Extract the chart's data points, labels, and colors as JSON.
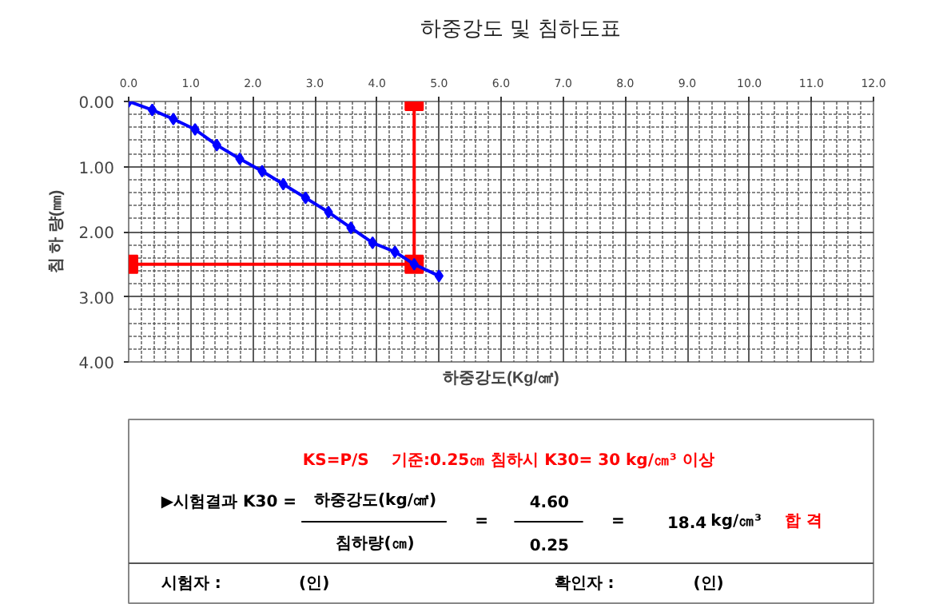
{
  "chart_data": {
    "type": "line",
    "title": "하중강도 및 침하도표",
    "xlabel": "하중강도(Kg/㎠)",
    "ylabel": "침 하 량(㎜)",
    "xlim": [
      0,
      12
    ],
    "xticks": [
      {
        "value": 0,
        "label": "0.0"
      },
      {
        "value": 1,
        "label": "1.0"
      },
      {
        "value": 2,
        "label": "2.0"
      },
      {
        "value": 3,
        "label": "3.0"
      },
      {
        "value": 4,
        "label": "4.0"
      },
      {
        "value": 5,
        "label": "5.0"
      },
      {
        "value": 6,
        "label": "6.0"
      },
      {
        "value": 7,
        "label": "7.0"
      },
      {
        "value": 8,
        "label": "8.0"
      },
      {
        "value": 9,
        "label": "9.0"
      },
      {
        "value": 10,
        "label": "10.0"
      },
      {
        "value": 11,
        "label": "11.0"
      },
      {
        "value": 12,
        "label": "12.0"
      }
    ],
    "ylim": [
      4,
      0
    ],
    "yticks": [
      {
        "value": 0,
        "label": "0.00"
      },
      {
        "value": 1,
        "label": "1.00"
      },
      {
        "value": 2,
        "label": "2.00"
      },
      {
        "value": 3,
        "label": "3.00"
      },
      {
        "value": 4,
        "label": "4.00"
      }
    ],
    "grid": true,
    "series": [
      {
        "color": "#ff0000",
        "marker": "square",
        "x": [
          4.6,
          4.6,
          0
        ],
        "values": [
          0,
          2.5,
          2.5
        ]
      },
      {
        "color": "#0000ff",
        "marker": "diamond",
        "x": [
          0,
          0.38,
          0.72,
          1.07,
          1.42,
          1.79,
          2.15,
          2.49,
          2.85,
          3.22,
          3.58,
          3.93,
          4.29,
          4.6,
          5.0
        ],
        "values": [
          0,
          0.13,
          0.27,
          0.43,
          0.67,
          0.88,
          1.07,
          1.27,
          1.48,
          1.7,
          1.94,
          2.17,
          2.31,
          2.5,
          2.68
        ]
      }
    ],
    "annotations": [
      "KS=P/S",
      "기준:0.25㎝ 침하시 K30= 30 kg/㎝³ 이상",
      "▶시험결과 K30 =",
      "하중강도(kg/㎠)",
      "침하량(㎝)",
      "=",
      "4.60",
      "0.25",
      "=",
      "18.4",
      "kg/㎝³",
      "합 격",
      "시험자 :",
      "(인)",
      "확인자 :",
      "(인)"
    ]
  }
}
